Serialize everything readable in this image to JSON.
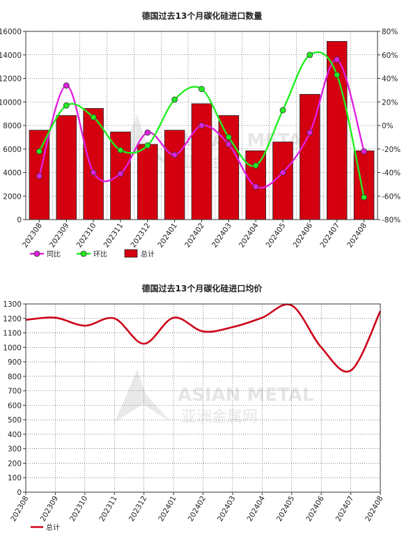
{
  "chart_data": [
    {
      "type": "bar",
      "title": "德国过去13个月碳化硅进口数量",
      "categories": [
        "202308",
        "202309",
        "202310",
        "202311",
        "202312",
        "202401",
        "202402",
        "202403",
        "202404",
        "202405",
        "202406",
        "202407",
        "202408"
      ],
      "ylim": [
        0,
        16000
      ],
      "y2lim": [
        -80,
        80
      ],
      "y_ticks": [
        0,
        2000,
        4000,
        6000,
        8000,
        10000,
        12000,
        14000,
        16000
      ],
      "y2_ticks": [
        -80,
        -60,
        -40,
        -20,
        0,
        20,
        40,
        60,
        80
      ],
      "y2_suffix": "%",
      "grid": true,
      "legend_position": "bottom-left",
      "series": [
        {
          "name": "总计",
          "type": "bar",
          "axis": "left",
          "color": "#d40010",
          "values": [
            7600,
            8850,
            9450,
            7450,
            6400,
            7600,
            9850,
            8850,
            5850,
            6600,
            10650,
            15150,
            5850
          ]
        },
        {
          "name": "同比",
          "type": "line",
          "axis": "right",
          "color": "#e020e0",
          "values": [
            -43,
            34,
            -40,
            -41,
            -6,
            -25,
            0,
            -16,
            -52,
            -40,
            -6,
            56,
            -22
          ]
        },
        {
          "name": "环比",
          "type": "line",
          "axis": "right",
          "color": "#22ee22",
          "values": [
            -22,
            17,
            7,
            -21,
            -17,
            22,
            31,
            -10,
            -34,
            13,
            60,
            43,
            -61
          ]
        }
      ]
    },
    {
      "type": "line",
      "title": "德国过去13个月碳化硅进口均价",
      "categories": [
        "202308",
        "202309",
        "202310",
        "202311",
        "202312",
        "202401",
        "202402",
        "202403",
        "202404",
        "202405",
        "202406",
        "202407",
        "202408"
      ],
      "ylim": [
        0,
        1300
      ],
      "y_ticks": [
        0,
        100,
        200,
        300,
        400,
        500,
        600,
        700,
        800,
        900,
        1000,
        1100,
        1200,
        1300
      ],
      "grid": true,
      "legend_position": "bottom-left",
      "series": [
        {
          "name": "总计",
          "color": "#cc0018",
          "values": [
            1190,
            1205,
            1150,
            1200,
            1025,
            1205,
            1110,
            1140,
            1205,
            1290,
            1000,
            840,
            1250
          ]
        }
      ]
    }
  ],
  "watermark": {
    "line1": "ASIAN METAL",
    "line2": "亚洲金属网"
  }
}
